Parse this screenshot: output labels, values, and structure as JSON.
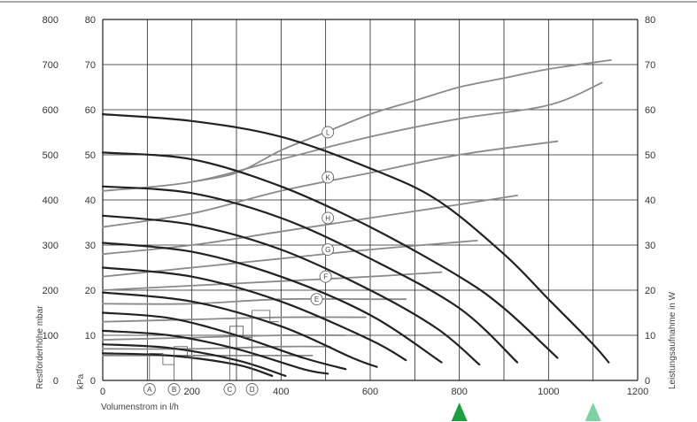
{
  "chart_data": {
    "type": "line",
    "xlabel": "Volumenstrom in l/h",
    "ylabel_left": "Restförderhöhe mbar",
    "ylabel_left_inner": "kPa",
    "ylabel_right": "Leistungsaufnahme in W",
    "xlim": [
      0,
      1200
    ],
    "ylim_mbar": [
      0,
      800
    ],
    "ylim_kpa": [
      0,
      80
    ],
    "ylim_w": [
      0,
      80
    ],
    "x_ticks": [
      "0",
      "200",
      "400",
      "600",
      "800",
      "1000",
      "1200"
    ],
    "y_ticks_mbar": [
      "0",
      "100",
      "200",
      "300",
      "400",
      "500",
      "600",
      "700",
      "800"
    ],
    "y_ticks_kpa": [
      "0",
      "10",
      "20",
      "30",
      "40",
      "50",
      "60",
      "70",
      "80"
    ],
    "y_ticks_w": [
      "0",
      "10",
      "20",
      "30",
      "40",
      "50",
      "60",
      "70",
      "80"
    ],
    "grid": true,
    "pump_curves_mbar": [
      {
        "x": [
          0,
          200,
          400,
          600,
          750,
          900,
          1000,
          1100,
          1135
        ],
        "y": [
          590,
          575,
          540,
          470,
          400,
          280,
          180,
          80,
          40
        ]
      },
      {
        "x": [
          0,
          200,
          400,
          600,
          800,
          900,
          1020
        ],
        "y": [
          505,
          490,
          430,
          340,
          230,
          160,
          50
        ]
      },
      {
        "x": [
          0,
          200,
          400,
          600,
          800,
          930
        ],
        "y": [
          430,
          415,
          360,
          270,
          160,
          40
        ]
      },
      {
        "x": [
          0,
          200,
          400,
          600,
          750,
          845
        ],
        "y": [
          365,
          345,
          290,
          200,
          115,
          35
        ]
      },
      {
        "x": [
          0,
          200,
          400,
          600,
          760
        ],
        "y": [
          305,
          285,
          230,
          145,
          40
        ]
      },
      {
        "x": [
          0,
          200,
          400,
          600,
          680
        ],
        "y": [
          250,
          230,
          175,
          90,
          45
        ]
      },
      {
        "x": [
          0,
          200,
          400,
          560,
          615
        ],
        "y": [
          195,
          175,
          120,
          50,
          30
        ]
      },
      {
        "x": [
          0,
          150,
          300,
          450,
          545
        ],
        "y": [
          150,
          138,
          100,
          50,
          25
        ]
      },
      {
        "x": [
          0,
          150,
          300,
          450,
          505
        ],
        "y": [
          110,
          100,
          70,
          25,
          15
        ]
      },
      {
        "x": [
          0,
          150,
          300,
          410
        ],
        "y": [
          80,
          72,
          45,
          10
        ]
      },
      {
        "x": [
          0,
          150,
          300,
          380
        ],
        "y": [
          60,
          55,
          35,
          10
        ]
      }
    ],
    "power_curves_w": [
      {
        "label": "L",
        "x": [
          200,
          300,
          400,
          500,
          600,
          700,
          800,
          900,
          1000,
          1140
        ],
        "y": [
          44,
          46,
          51,
          55,
          59,
          62,
          65,
          67,
          69,
          71
        ]
      },
      {
        "label": "K",
        "x": [
          0,
          200,
          400,
          600,
          800,
          1000,
          1120
        ],
        "y": [
          42,
          44,
          49,
          54,
          58,
          61,
          66
        ]
      },
      {
        "label": "H",
        "x": [
          0,
          200,
          400,
          600,
          800,
          1020
        ],
        "y": [
          34,
          37,
          42,
          46,
          50,
          53
        ]
      },
      {
        "label": "G",
        "x": [
          0,
          200,
          400,
          600,
          800,
          930
        ],
        "y": [
          28,
          30,
          33,
          36,
          39,
          41
        ]
      },
      {
        "label": "F",
        "x": [
          0,
          200,
          400,
          600,
          840
        ],
        "y": [
          23,
          25,
          27,
          29,
          31
        ]
      },
      {
        "label": "E",
        "x": [
          0,
          200,
          400,
          600,
          760
        ],
        "y": [
          20,
          21,
          22,
          23,
          24
        ]
      },
      {
        "label": "",
        "x": [
          0,
          200,
          400,
          600,
          680
        ],
        "y": [
          17,
          17,
          18,
          18,
          18
        ]
      },
      {
        "label": "",
        "x": [
          0,
          200,
          400,
          590
        ],
        "y": [
          13,
          13.5,
          14,
          14
        ]
      },
      {
        "label": "",
        "x": [
          0,
          200,
          400,
          545
        ],
        "y": [
          9,
          9.5,
          10,
          10
        ]
      },
      {
        "label": "",
        "x": [
          0,
          200,
          400,
          510
        ],
        "y": [
          7,
          7,
          7.5,
          7.5
        ]
      },
      {
        "label": "",
        "x": [
          0,
          200,
          400,
          470
        ],
        "y": [
          5.5,
          5.5,
          5.5,
          5.5
        ]
      }
    ],
    "markers_bottom": [
      "A",
      "B",
      "C",
      "D"
    ],
    "arrows_at_x": [
      {
        "x": 800,
        "color": "#1e9e3e"
      },
      {
        "x": 1100,
        "color": "#7cd2a0"
      }
    ],
    "colors": {
      "pump": "#222222",
      "power": "#8a8a8a",
      "grid": "#222222"
    }
  }
}
